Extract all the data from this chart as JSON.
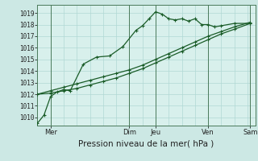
{
  "xlabel": "Pression niveau de la mer( hPa )",
  "bg_color": "#cce8e4",
  "plot_bg_color": "#d8f0ec",
  "grid_color": "#b0d8d4",
  "line_color": "#1a5c28",
  "vline_color": "#4a7a5a",
  "ylim": [
    1009.3,
    1019.7
  ],
  "xlim": [
    0.0,
    8.3
  ],
  "xtick_positions": [
    0.5,
    3.5,
    4.5,
    6.5,
    8.1
  ],
  "xtick_labels": [
    "Mer",
    "Dim",
    "Jeu",
    "Ven",
    "Sam"
  ],
  "ytick_positions": [
    1010,
    1011,
    1012,
    1013,
    1014,
    1015,
    1016,
    1017,
    1018,
    1019
  ],
  "vline_positions": [
    0.5,
    3.5,
    4.5,
    6.5,
    8.1
  ],
  "line1_x": [
    0.0,
    0.25,
    0.5,
    0.75,
    1.0,
    1.25,
    1.75,
    2.25,
    2.75,
    3.25,
    3.75,
    4.0,
    4.25,
    4.5,
    4.75,
    5.0,
    5.25,
    5.5,
    5.75,
    6.0,
    6.25,
    6.5,
    6.75,
    7.0,
    7.5,
    8.1
  ],
  "line1_y": [
    1009.5,
    1010.2,
    1011.8,
    1012.2,
    1012.4,
    1012.3,
    1014.6,
    1015.2,
    1015.3,
    1016.1,
    1017.5,
    1017.9,
    1018.5,
    1019.1,
    1018.9,
    1018.5,
    1018.4,
    1018.5,
    1018.3,
    1018.5,
    1018.0,
    1018.0,
    1017.8,
    1017.9,
    1018.1,
    1018.1
  ],
  "line2_x": [
    0.0,
    0.5,
    1.0,
    1.5,
    2.0,
    2.5,
    3.0,
    3.5,
    4.0,
    4.5,
    5.0,
    5.5,
    6.0,
    6.5,
    7.0,
    7.5,
    8.1
  ],
  "line2_y": [
    1012.0,
    1012.1,
    1012.3,
    1012.5,
    1012.8,
    1013.1,
    1013.4,
    1013.8,
    1014.2,
    1014.7,
    1015.2,
    1015.7,
    1016.2,
    1016.7,
    1017.2,
    1017.6,
    1018.1
  ],
  "line3_x": [
    0.0,
    0.5,
    1.0,
    1.5,
    2.0,
    2.5,
    3.0,
    3.5,
    4.0,
    4.5,
    5.0,
    5.5,
    6.0,
    6.5,
    7.0,
    7.5,
    8.1
  ],
  "line3_y": [
    1012.0,
    1012.3,
    1012.6,
    1012.9,
    1013.2,
    1013.5,
    1013.8,
    1014.1,
    1014.5,
    1015.0,
    1015.5,
    1016.0,
    1016.5,
    1017.0,
    1017.4,
    1017.8,
    1018.2
  ],
  "marker": "+",
  "markersize": 3.5,
  "linewidth": 0.9,
  "ytick_fontsize": 5.5,
  "xtick_fontsize": 6.0,
  "xlabel_fontsize": 7.5
}
